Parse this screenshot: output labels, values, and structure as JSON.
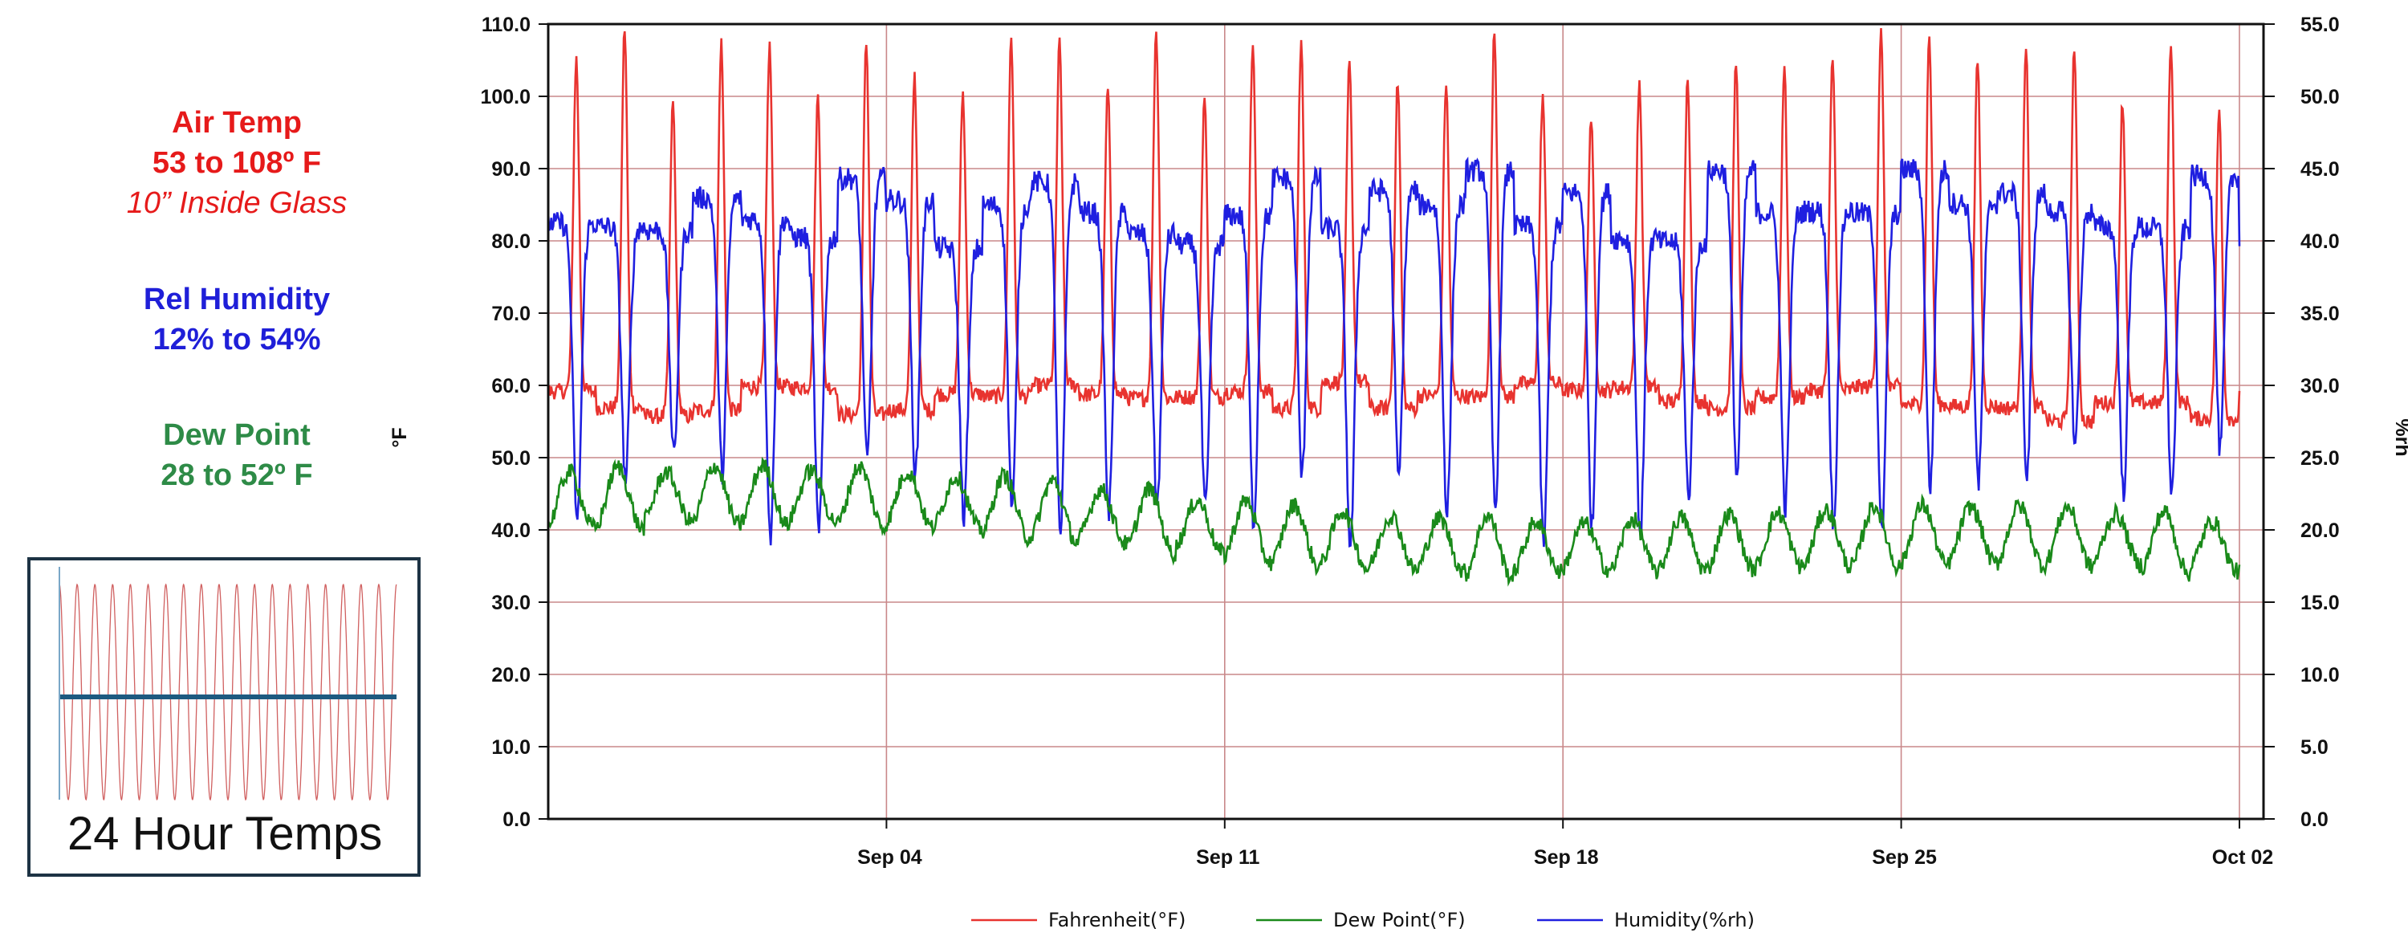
{
  "side_notes": {
    "air_temp": {
      "title": "Air Temp",
      "range": "53 to 108º F",
      "note": "10” Inside Glass",
      "color": "#e61a1a"
    },
    "rel_humidity": {
      "title": "Rel Humidity",
      "range": "12% to 54%",
      "color": "#1f1fd8"
    },
    "dew_point": {
      "title": "Dew Point",
      "range": "28 to 52º F",
      "color": "#2e8b47"
    }
  },
  "inset": {
    "label": "24 Hour Temps"
  },
  "chart_data": {
    "type": "line",
    "title": "",
    "y_left": {
      "label": "°F",
      "range": [
        0,
        110
      ],
      "ticks": [
        "0.0",
        "10.0",
        "20.0",
        "30.0",
        "40.0",
        "50.0",
        "60.0",
        "70.0",
        "80.0",
        "90.0",
        "100.0",
        "110.0"
      ]
    },
    "y_right": {
      "label": "%rh",
      "range": [
        0,
        55
      ],
      "ticks": [
        "0.0",
        "5.0",
        "10.0",
        "15.0",
        "20.0",
        "25.0",
        "30.0",
        "35.0",
        "40.0",
        "45.0",
        "50.0",
        "55.0"
      ]
    },
    "x_axis": {
      "start": "2024-08-28",
      "end": "2024-10-02",
      "tick_labels": [
        "Sep 04",
        "Sep 11",
        "Sep 18",
        "Sep 25",
        "Oct 02"
      ]
    },
    "grid": true,
    "legend_position": "bottom",
    "series": [
      {
        "name": "Fahrenheit(°F)",
        "color": "#e8332f",
        "axis": "left",
        "daily_min_F": 61,
        "daily_max_F": 106,
        "overall_range_F": [
          53,
          108
        ]
      },
      {
        "name": "Dew Point(°F)",
        "color": "#1a8a1a",
        "axis": "left",
        "daily_min_F": 33,
        "daily_max_F": 48,
        "overall_range_F": [
          28,
          52
        ]
      },
      {
        "name": "Humidity(%rh)",
        "color": "#1f1fe0",
        "axis": "right",
        "daily_min_pct": 18,
        "daily_max_pct": 45,
        "overall_range_pct": [
          12,
          54
        ]
      }
    ]
  }
}
